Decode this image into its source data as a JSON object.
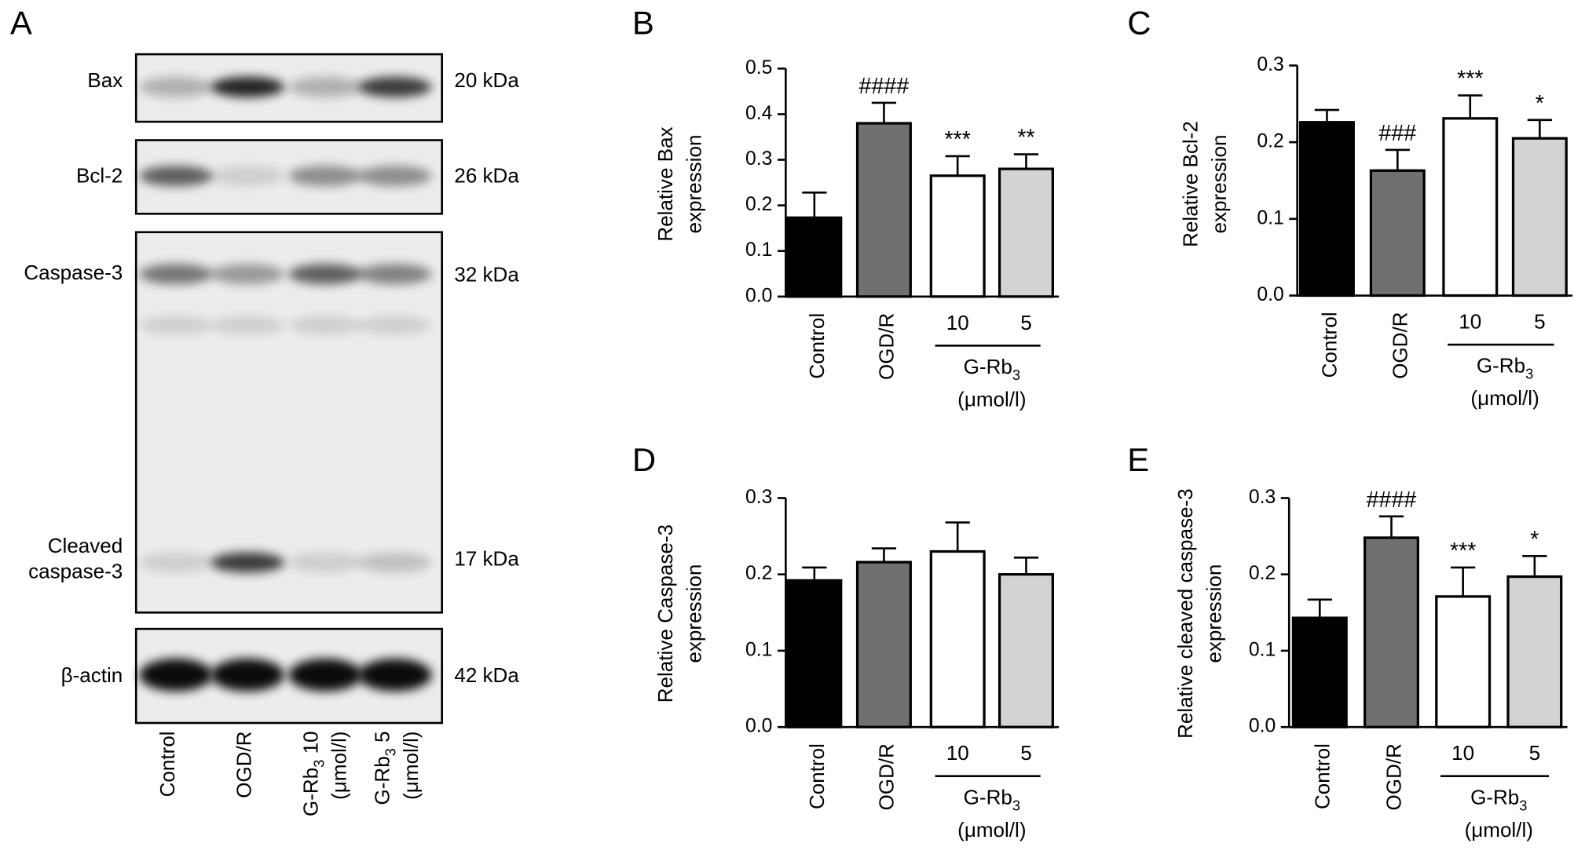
{
  "blot": {
    "panel": "A",
    "rows": [
      {
        "label": [
          "Bax"
        ],
        "size": "20 kDa"
      },
      {
        "label": [
          "Bcl-2"
        ],
        "size": "26 kDa"
      },
      {
        "label": [
          "Caspase-3"
        ],
        "size": "32 kDa"
      },
      {
        "label": [
          "Cleaved",
          "caspase-3"
        ],
        "size": "17 kDa"
      },
      {
        "label": [
          "β-actin"
        ],
        "size": "42 kDa"
      }
    ],
    "lanes": [
      {
        "text": "Control"
      },
      {
        "text": "OGD/R"
      },
      {
        "text": "G-Rb",
        "sub": "3",
        "after": " 10",
        "line2": "(μmol/l)"
      },
      {
        "text": "G-Rb",
        "sub": "3",
        "after": " 5",
        "line2": "(μmol/l)"
      }
    ]
  },
  "chart_data": [
    {
      "type": "bar",
      "panel": "B",
      "ylabel": [
        "Relative Bax",
        "expression"
      ],
      "categories": [
        "Control",
        "OGD/R",
        "10",
        "5"
      ],
      "values": [
        0.173,
        0.38,
        0.265,
        0.28
      ],
      "errors": [
        0.055,
        0.045,
        0.043,
        0.032
      ],
      "annotations": [
        null,
        "####",
        "***",
        "**"
      ],
      "colors": [
        "#000000",
        "#707070",
        "#ffffff",
        "#d3d3d3"
      ],
      "group": {
        "text": "G-Rb",
        "sub": "3",
        "unit": "(μmol/l)"
      },
      "ylim": [
        0,
        0.5
      ],
      "yticks": [
        {
          "value": 0,
          "label": "0.0"
        },
        0.1,
        0.2,
        0.3,
        0.4,
        0.5
      ]
    },
    {
      "type": "bar",
      "panel": "C",
      "ylabel": [
        "Relative Bcl-2",
        "expression"
      ],
      "categories": [
        "Control",
        "OGD/R",
        "10",
        "5"
      ],
      "values": [
        0.226,
        0.163,
        0.231,
        0.205
      ],
      "errors": [
        0.016,
        0.027,
        0.03,
        0.024
      ],
      "annotations": [
        null,
        "###",
        "***",
        "*"
      ],
      "colors": [
        "#000000",
        "#707070",
        "#ffffff",
        "#d3d3d3"
      ],
      "group": {
        "text": "G-Rb",
        "sub": "3",
        "unit": "(μmol/l)"
      },
      "ylim": [
        0,
        0.3
      ],
      "yticks": [
        {
          "value": 0,
          "label": "0.0"
        },
        0.1,
        0.2,
        0.3
      ]
    },
    {
      "type": "bar",
      "panel": "D",
      "ylabel": [
        "Relative Caspase-3",
        "expression"
      ],
      "categories": [
        "Control",
        "OGD/R",
        "10",
        "5"
      ],
      "values": [
        0.192,
        0.216,
        0.23,
        0.2
      ],
      "errors": [
        0.017,
        0.018,
        0.038,
        0.022
      ],
      "annotations": [
        null,
        null,
        null,
        null
      ],
      "colors": [
        "#000000",
        "#707070",
        "#ffffff",
        "#d3d3d3"
      ],
      "group": {
        "text": "G-Rb",
        "sub": "3",
        "unit": "(μmol/l)"
      },
      "ylim": [
        0,
        0.3
      ],
      "yticks": [
        {
          "value": 0,
          "label": "0.0"
        },
        0.1,
        0.2,
        0.3
      ]
    },
    {
      "type": "bar",
      "panel": "E",
      "ylabel": [
        "Relative cleaved caspase-3",
        "expression"
      ],
      "categories": [
        "Control",
        "OGD/R",
        "10",
        "5"
      ],
      "values": [
        0.143,
        0.248,
        0.171,
        0.197
      ],
      "errors": [
        0.024,
        0.028,
        0.038,
        0.027
      ],
      "annotations": [
        null,
        "####",
        "***",
        "*"
      ],
      "colors": [
        "#000000",
        "#707070",
        "#ffffff",
        "#d3d3d3"
      ],
      "group": {
        "text": "G-Rb",
        "sub": "3",
        "unit": "(μmol/l)"
      },
      "ylim": [
        0,
        0.3
      ],
      "yticks": [
        {
          "value": 0,
          "label": "0.0"
        },
        0.1,
        0.2,
        0.3
      ]
    }
  ]
}
